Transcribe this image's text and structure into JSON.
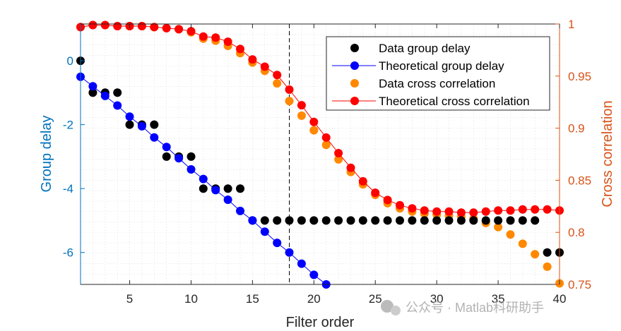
{
  "chart_data": {
    "type": "scatter",
    "x_label": "Filter order",
    "y_left_label": "Group delay",
    "y_right_label": "Cross correlation",
    "x_range": [
      1,
      40
    ],
    "y_left_range": [
      -7,
      1.15
    ],
    "y_right_range": [
      0.75,
      1.0
    ],
    "x_ticks": [
      5,
      10,
      15,
      20,
      25,
      30,
      35,
      40
    ],
    "y_left_ticks": [
      0,
      -2,
      -4,
      -6
    ],
    "y_right_ticks": [
      1,
      0.95,
      0.9,
      0.85,
      0.8,
      0.75
    ],
    "vertical_marker_x": 18,
    "grid": "minor dotted",
    "legend_position": "top-right",
    "colors": {
      "left_axis": "#0072bd",
      "right_axis": "#d95319",
      "data_group_delay": "#000000",
      "theoretical_group_delay": "#0000ff",
      "data_cross_correlation": "#ff8800",
      "theoretical_cross_correlation": "#ff0000"
    },
    "legend": [
      "Data group delay",
      "Theoretical group delay",
      "Data cross correlation",
      "Theoretical cross correlation"
    ],
    "series": [
      {
        "name": "Data group delay",
        "axis": "left",
        "style": "markers",
        "x": [
          1,
          2,
          3,
          4,
          5,
          6,
          7,
          8,
          9,
          10,
          11,
          12,
          13,
          14,
          15,
          16,
          17,
          18,
          19,
          20,
          21,
          22,
          23,
          24,
          25,
          26,
          27,
          28,
          29,
          30,
          31,
          32,
          33,
          34,
          35,
          36,
          37,
          38,
          39,
          40
        ],
        "y": [
          0,
          -1,
          -1,
          -1,
          -2,
          -2,
          -2,
          -3,
          -3,
          -3,
          -4,
          -4,
          -4,
          -4,
          -5,
          -5,
          -5,
          -5,
          -5,
          -5,
          -5,
          -5,
          -5,
          -5,
          -5,
          -5,
          -5,
          -5,
          -5,
          -5,
          -5,
          -5,
          -5,
          -5,
          -5,
          -5,
          -5,
          -5,
          -6,
          -6
        ]
      },
      {
        "name": "Theoretical group delay",
        "axis": "left",
        "style": "line-markers",
        "x": [
          1,
          2,
          3,
          4,
          5,
          6,
          7,
          8,
          9,
          10,
          11,
          12,
          13,
          14,
          15,
          16,
          17,
          18,
          19,
          20,
          21
        ],
        "y": [
          -0.5,
          -0.8,
          -1.1,
          -1.4,
          -1.75,
          -2.05,
          -2.4,
          -2.7,
          -3.05,
          -3.4,
          -3.7,
          -4.05,
          -4.35,
          -4.7,
          -5.0,
          -5.35,
          -5.7,
          -6.0,
          -6.35,
          -6.7,
          -7.0
        ]
      },
      {
        "name": "Data cross correlation",
        "axis": "right",
        "style": "markers",
        "x": [
          1,
          2,
          3,
          4,
          5,
          6,
          7,
          8,
          9,
          10,
          11,
          12,
          13,
          14,
          15,
          16,
          17,
          18,
          19,
          20,
          21,
          22,
          23,
          24,
          25,
          26,
          27,
          28,
          29,
          30,
          31,
          32,
          33,
          34,
          35,
          36,
          37,
          38,
          39,
          40
        ],
        "y": [
          0.997,
          0.999,
          0.999,
          0.998,
          0.998,
          0.998,
          0.997,
          0.996,
          0.995,
          0.992,
          0.986,
          0.984,
          0.979,
          0.972,
          0.963,
          0.955,
          0.943,
          0.926,
          0.912,
          0.898,
          0.884,
          0.87,
          0.858,
          0.846,
          0.836,
          0.828,
          0.823,
          0.82,
          0.818,
          0.817,
          0.816,
          0.815,
          0.813,
          0.809,
          0.805,
          0.798,
          0.789,
          0.779,
          0.767,
          0.751
        ]
      },
      {
        "name": "Theoretical cross correlation",
        "axis": "right",
        "style": "line-markers",
        "x": [
          1,
          2,
          3,
          4,
          5,
          6,
          7,
          8,
          9,
          10,
          11,
          12,
          13,
          14,
          15,
          16,
          17,
          18,
          19,
          20,
          21,
          22,
          23,
          24,
          25,
          26,
          27,
          28,
          29,
          30,
          31,
          32,
          33,
          34,
          35,
          36,
          37,
          38,
          39,
          40
        ],
        "y": [
          0.997,
          0.999,
          0.999,
          0.998,
          0.998,
          0.998,
          0.997,
          0.996,
          0.995,
          0.993,
          0.988,
          0.987,
          0.983,
          0.976,
          0.966,
          0.959,
          0.951,
          0.937,
          0.922,
          0.906,
          0.891,
          0.876,
          0.862,
          0.849,
          0.838,
          0.831,
          0.826,
          0.823,
          0.821,
          0.82,
          0.82,
          0.819,
          0.819,
          0.82,
          0.821,
          0.821,
          0.822,
          0.822,
          0.822,
          0.821
        ]
      }
    ]
  },
  "watermark": "公众号 · Matlab科研助手"
}
